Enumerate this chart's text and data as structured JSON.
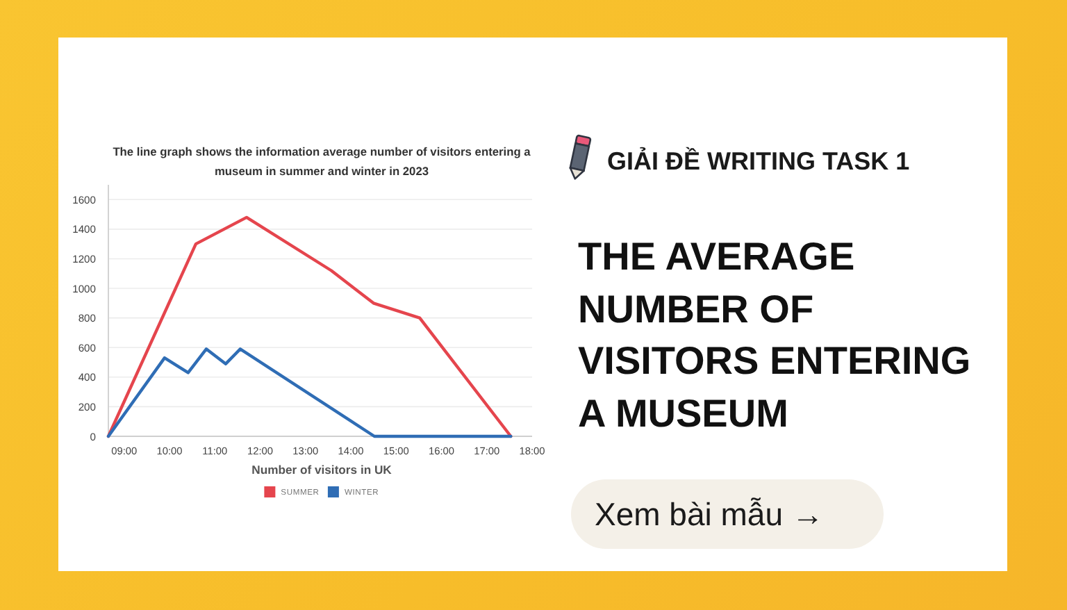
{
  "chart_data": {
    "type": "line",
    "title": "The line graph shows the information average number of visitors entering a museum in summer and winter in 2023",
    "xlabel": "Number of visitors in UK",
    "xlim": [
      8.65,
      18
    ],
    "xticks": [
      {
        "value": 9,
        "label": "09:00"
      },
      {
        "value": 10,
        "label": "10:00"
      },
      {
        "value": 11,
        "label": "11:00"
      },
      {
        "value": 12,
        "label": "12:00"
      },
      {
        "value": 13,
        "label": "13:00"
      },
      {
        "value": 14,
        "label": "14:00"
      },
      {
        "value": 15,
        "label": "15:00"
      },
      {
        "value": 16,
        "label": "16:00"
      },
      {
        "value": 17,
        "label": "17:00"
      },
      {
        "value": 18,
        "label": "18:00"
      }
    ],
    "ylim": [
      0,
      1700
    ],
    "yticks": [
      0,
      200,
      400,
      600,
      800,
      1000,
      1200,
      1400,
      1600
    ],
    "grid": "y",
    "legend": "bottom",
    "series": [
      {
        "name": "SUMMER",
        "color": "#e5454d",
        "x": [
          8.65,
          10.58,
          11.7,
          13.57,
          14.5,
          15.52,
          17.53
        ],
        "values": [
          0,
          1300,
          1480,
          1120,
          900,
          800,
          0
        ]
      },
      {
        "name": "WINTER",
        "color": "#2f6db5",
        "x": [
          8.65,
          9.89,
          10.41,
          10.81,
          11.24,
          11.56,
          14.52,
          17.53
        ],
        "values": [
          0,
          530,
          430,
          590,
          490,
          590,
          0,
          0
        ]
      }
    ],
    "annotations": [
      "GIẢI ĐỀ WRITING TASK 1",
      "THE AVERAGE NUMBER OF VISITORS ENTERING A MUSEUM",
      "Xem bài mẫu →"
    ]
  }
}
